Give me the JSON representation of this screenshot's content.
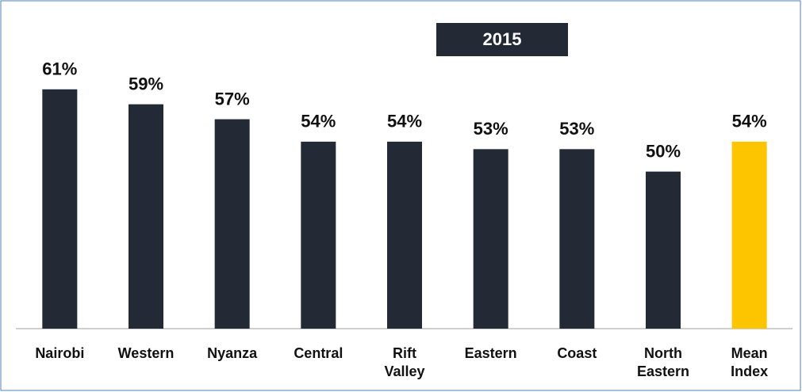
{
  "chart_data": {
    "type": "bar",
    "title": "2015",
    "categories": [
      "Nairobi",
      "Western",
      "Nyanza",
      "Central",
      "Rift Valley",
      "Eastern",
      "Coast",
      "North Eastern",
      "Mean Index"
    ],
    "values": [
      61,
      59,
      57,
      54,
      54,
      53,
      53,
      50,
      54
    ],
    "value_labels": [
      "61%",
      "59%",
      "57%",
      "54%",
      "54%",
      "53%",
      "53%",
      "50%",
      "54%"
    ],
    "colors": [
      "#232a35",
      "#232a35",
      "#232a35",
      "#232a35",
      "#232a35",
      "#232a35",
      "#232a35",
      "#232a35",
      "#fdc400"
    ],
    "ylim": [
      29,
      65
    ]
  }
}
